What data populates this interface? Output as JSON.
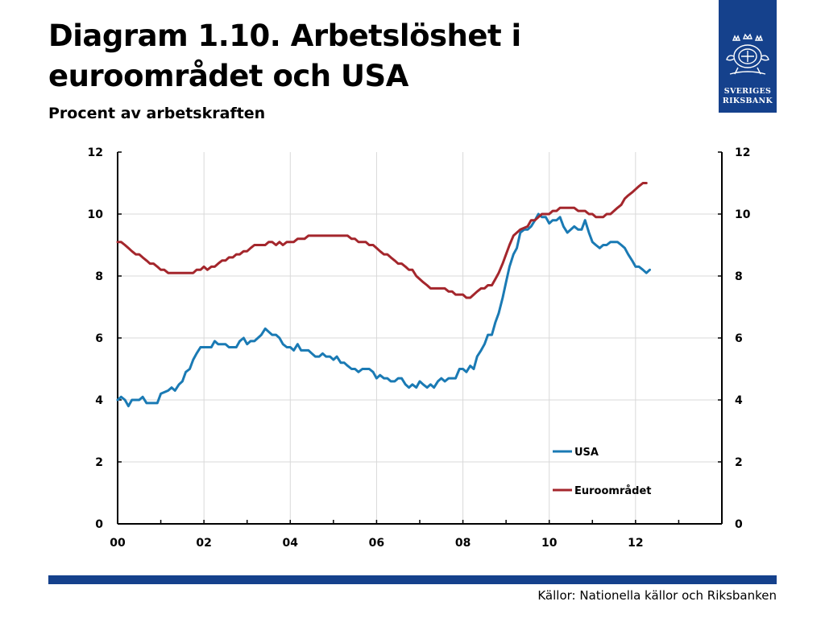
{
  "header": {
    "title": "Diagram 1.10. Arbetslöshet i euroområdet och USA",
    "subtitle": "Procent av arbetskraften"
  },
  "logo": {
    "line1": "SVERIGES",
    "line2": "RIKSBANK",
    "background": "#15418c"
  },
  "source": "Källor: Nationella källor och Riksbanken",
  "colors": {
    "usa": "#1a7ab4",
    "euro": "#a4262c",
    "accent": "#15418c"
  },
  "chart_data": {
    "type": "line",
    "x_unit": "year (decimal)",
    "xlim": [
      2000,
      2014
    ],
    "ylim": [
      0,
      12
    ],
    "x_ticks": [
      {
        "value": 2000,
        "label": "00"
      },
      {
        "value": 2002,
        "label": "02"
      },
      {
        "value": 2004,
        "label": "04"
      },
      {
        "value": 2006,
        "label": "06"
      },
      {
        "value": 2008,
        "label": "08"
      },
      {
        "value": 2010,
        "label": "10"
      },
      {
        "value": 2012,
        "label": "12"
      }
    ],
    "y_ticks": [
      0,
      2,
      4,
      6,
      8,
      10,
      12
    ],
    "y_tick_labels": [
      "0",
      "2",
      "4",
      "6",
      "8",
      "10",
      "12"
    ],
    "grid": true,
    "legend": {
      "position": "bottom-right"
    },
    "series": [
      {
        "name": "USA",
        "color": "#1a7ab4",
        "points": [
          [
            2000.0,
            4.0
          ],
          [
            2000.08,
            4.1
          ],
          [
            2000.17,
            4.0
          ],
          [
            2000.25,
            3.8
          ],
          [
            2000.33,
            4.0
          ],
          [
            2000.5,
            4.0
          ],
          [
            2000.58,
            4.1
          ],
          [
            2000.67,
            3.9
          ],
          [
            2000.83,
            3.9
          ],
          [
            2000.92,
            3.9
          ],
          [
            2001.0,
            4.2
          ],
          [
            2001.17,
            4.3
          ],
          [
            2001.25,
            4.4
          ],
          [
            2001.33,
            4.3
          ],
          [
            2001.42,
            4.5
          ],
          [
            2001.5,
            4.6
          ],
          [
            2001.58,
            4.9
          ],
          [
            2001.67,
            5.0
          ],
          [
            2001.75,
            5.3
          ],
          [
            2001.83,
            5.5
          ],
          [
            2001.92,
            5.7
          ],
          [
            2002.0,
            5.7
          ],
          [
            2002.17,
            5.7
          ],
          [
            2002.25,
            5.9
          ],
          [
            2002.33,
            5.8
          ],
          [
            2002.5,
            5.8
          ],
          [
            2002.58,
            5.7
          ],
          [
            2002.75,
            5.7
          ],
          [
            2002.83,
            5.9
          ],
          [
            2002.92,
            6.0
          ],
          [
            2003.0,
            5.8
          ],
          [
            2003.08,
            5.9
          ],
          [
            2003.17,
            5.9
          ],
          [
            2003.25,
            6.0
          ],
          [
            2003.33,
            6.1
          ],
          [
            2003.42,
            6.3
          ],
          [
            2003.5,
            6.2
          ],
          [
            2003.58,
            6.1
          ],
          [
            2003.67,
            6.1
          ],
          [
            2003.75,
            6.0
          ],
          [
            2003.83,
            5.8
          ],
          [
            2003.92,
            5.7
          ],
          [
            2004.0,
            5.7
          ],
          [
            2004.08,
            5.6
          ],
          [
            2004.17,
            5.8
          ],
          [
            2004.25,
            5.6
          ],
          [
            2004.42,
            5.6
          ],
          [
            2004.5,
            5.5
          ],
          [
            2004.58,
            5.4
          ],
          [
            2004.67,
            5.4
          ],
          [
            2004.75,
            5.5
          ],
          [
            2004.83,
            5.4
          ],
          [
            2004.92,
            5.4
          ],
          [
            2005.0,
            5.3
          ],
          [
            2005.08,
            5.4
          ],
          [
            2005.17,
            5.2
          ],
          [
            2005.25,
            5.2
          ],
          [
            2005.33,
            5.1
          ],
          [
            2005.42,
            5.0
          ],
          [
            2005.5,
            5.0
          ],
          [
            2005.58,
            4.9
          ],
          [
            2005.67,
            5.0
          ],
          [
            2005.83,
            5.0
          ],
          [
            2005.92,
            4.9
          ],
          [
            2006.0,
            4.7
          ],
          [
            2006.08,
            4.8
          ],
          [
            2006.17,
            4.7
          ],
          [
            2006.25,
            4.7
          ],
          [
            2006.33,
            4.6
          ],
          [
            2006.42,
            4.6
          ],
          [
            2006.5,
            4.7
          ],
          [
            2006.58,
            4.7
          ],
          [
            2006.67,
            4.5
          ],
          [
            2006.75,
            4.4
          ],
          [
            2006.83,
            4.5
          ],
          [
            2006.92,
            4.4
          ],
          [
            2007.0,
            4.6
          ],
          [
            2007.08,
            4.5
          ],
          [
            2007.17,
            4.4
          ],
          [
            2007.25,
            4.5
          ],
          [
            2007.33,
            4.4
          ],
          [
            2007.42,
            4.6
          ],
          [
            2007.5,
            4.7
          ],
          [
            2007.58,
            4.6
          ],
          [
            2007.67,
            4.7
          ],
          [
            2007.83,
            4.7
          ],
          [
            2007.92,
            5.0
          ],
          [
            2008.0,
            5.0
          ],
          [
            2008.08,
            4.9
          ],
          [
            2008.17,
            5.1
          ],
          [
            2008.25,
            5.0
          ],
          [
            2008.33,
            5.4
          ],
          [
            2008.42,
            5.6
          ],
          [
            2008.5,
            5.8
          ],
          [
            2008.58,
            6.1
          ],
          [
            2008.67,
            6.1
          ],
          [
            2008.75,
            6.5
          ],
          [
            2008.83,
            6.8
          ],
          [
            2008.92,
            7.3
          ],
          [
            2009.0,
            7.8
          ],
          [
            2009.08,
            8.3
          ],
          [
            2009.17,
            8.7
          ],
          [
            2009.25,
            8.9
          ],
          [
            2009.33,
            9.4
          ],
          [
            2009.42,
            9.5
          ],
          [
            2009.5,
            9.5
          ],
          [
            2009.58,
            9.6
          ],
          [
            2009.67,
            9.8
          ],
          [
            2009.75,
            10.0
          ],
          [
            2009.83,
            9.9
          ],
          [
            2009.92,
            9.9
          ],
          [
            2010.0,
            9.7
          ],
          [
            2010.08,
            9.8
          ],
          [
            2010.17,
            9.8
          ],
          [
            2010.25,
            9.9
          ],
          [
            2010.33,
            9.6
          ],
          [
            2010.42,
            9.4
          ],
          [
            2010.5,
            9.5
          ],
          [
            2010.58,
            9.6
          ],
          [
            2010.67,
            9.5
          ],
          [
            2010.75,
            9.5
          ],
          [
            2010.83,
            9.8
          ],
          [
            2010.92,
            9.4
          ],
          [
            2011.0,
            9.1
          ],
          [
            2011.08,
            9.0
          ],
          [
            2011.17,
            8.9
          ],
          [
            2011.25,
            9.0
          ],
          [
            2011.33,
            9.0
          ],
          [
            2011.42,
            9.1
          ],
          [
            2011.58,
            9.1
          ],
          [
            2011.67,
            9.0
          ],
          [
            2011.75,
            8.9
          ],
          [
            2011.83,
            8.7
          ],
          [
            2011.92,
            8.5
          ],
          [
            2012.0,
            8.3
          ],
          [
            2012.08,
            8.3
          ],
          [
            2012.17,
            8.2
          ],
          [
            2012.25,
            8.1
          ],
          [
            2012.33,
            8.2
          ]
        ]
      },
      {
        "name": "Euroområdet",
        "color": "#a4262c",
        "points": [
          [
            2000.0,
            9.1
          ],
          [
            2000.08,
            9.1
          ],
          [
            2000.17,
            9.0
          ],
          [
            2000.25,
            8.9
          ],
          [
            2000.33,
            8.8
          ],
          [
            2000.42,
            8.7
          ],
          [
            2000.5,
            8.7
          ],
          [
            2000.58,
            8.6
          ],
          [
            2000.67,
            8.5
          ],
          [
            2000.75,
            8.4
          ],
          [
            2000.83,
            8.4
          ],
          [
            2000.92,
            8.3
          ],
          [
            2001.0,
            8.2
          ],
          [
            2001.08,
            8.2
          ],
          [
            2001.17,
            8.1
          ],
          [
            2001.25,
            8.1
          ],
          [
            2001.5,
            8.1
          ],
          [
            2001.75,
            8.1
          ],
          [
            2001.83,
            8.2
          ],
          [
            2001.92,
            8.2
          ],
          [
            2002.0,
            8.3
          ],
          [
            2002.08,
            8.2
          ],
          [
            2002.17,
            8.3
          ],
          [
            2002.25,
            8.3
          ],
          [
            2002.33,
            8.4
          ],
          [
            2002.42,
            8.5
          ],
          [
            2002.5,
            8.5
          ],
          [
            2002.58,
            8.6
          ],
          [
            2002.67,
            8.6
          ],
          [
            2002.75,
            8.7
          ],
          [
            2002.83,
            8.7
          ],
          [
            2002.92,
            8.8
          ],
          [
            2003.0,
            8.8
          ],
          [
            2003.08,
            8.9
          ],
          [
            2003.17,
            9.0
          ],
          [
            2003.42,
            9.0
          ],
          [
            2003.5,
            9.1
          ],
          [
            2003.58,
            9.1
          ],
          [
            2003.67,
            9.0
          ],
          [
            2003.75,
            9.1
          ],
          [
            2003.83,
            9.0
          ],
          [
            2003.92,
            9.1
          ],
          [
            2004.0,
            9.1
          ],
          [
            2004.08,
            9.1
          ],
          [
            2004.17,
            9.2
          ],
          [
            2004.33,
            9.2
          ],
          [
            2004.42,
            9.3
          ],
          [
            2005.33,
            9.3
          ],
          [
            2005.42,
            9.2
          ],
          [
            2005.5,
            9.2
          ],
          [
            2005.58,
            9.1
          ],
          [
            2005.75,
            9.1
          ],
          [
            2005.83,
            9.0
          ],
          [
            2005.92,
            9.0
          ],
          [
            2006.0,
            8.9
          ],
          [
            2006.08,
            8.8
          ],
          [
            2006.17,
            8.7
          ],
          [
            2006.25,
            8.7
          ],
          [
            2006.33,
            8.6
          ],
          [
            2006.42,
            8.5
          ],
          [
            2006.5,
            8.4
          ],
          [
            2006.58,
            8.4
          ],
          [
            2006.67,
            8.3
          ],
          [
            2006.75,
            8.2
          ],
          [
            2006.83,
            8.2
          ],
          [
            2006.92,
            8.0
          ],
          [
            2007.0,
            7.9
          ],
          [
            2007.08,
            7.8
          ],
          [
            2007.17,
            7.7
          ],
          [
            2007.25,
            7.6
          ],
          [
            2007.58,
            7.6
          ],
          [
            2007.67,
            7.5
          ],
          [
            2007.75,
            7.5
          ],
          [
            2007.83,
            7.4
          ],
          [
            2008.0,
            7.4
          ],
          [
            2008.08,
            7.3
          ],
          [
            2008.17,
            7.3
          ],
          [
            2008.25,
            7.4
          ],
          [
            2008.33,
            7.5
          ],
          [
            2008.42,
            7.6
          ],
          [
            2008.5,
            7.6
          ],
          [
            2008.58,
            7.7
          ],
          [
            2008.67,
            7.7
          ],
          [
            2008.75,
            7.9
          ],
          [
            2008.83,
            8.1
          ],
          [
            2008.92,
            8.4
          ],
          [
            2009.0,
            8.7
          ],
          [
            2009.08,
            9.0
          ],
          [
            2009.17,
            9.3
          ],
          [
            2009.33,
            9.5
          ],
          [
            2009.5,
            9.6
          ],
          [
            2009.58,
            9.8
          ],
          [
            2009.67,
            9.8
          ],
          [
            2009.75,
            9.9
          ],
          [
            2009.83,
            10.0
          ],
          [
            2010.0,
            10.0
          ],
          [
            2010.08,
            10.1
          ],
          [
            2010.17,
            10.1
          ],
          [
            2010.25,
            10.2
          ],
          [
            2010.58,
            10.2
          ],
          [
            2010.67,
            10.1
          ],
          [
            2010.83,
            10.1
          ],
          [
            2010.92,
            10.0
          ],
          [
            2011.0,
            10.0
          ],
          [
            2011.08,
            9.9
          ],
          [
            2011.25,
            9.9
          ],
          [
            2011.33,
            10.0
          ],
          [
            2011.42,
            10.0
          ],
          [
            2011.5,
            10.1
          ],
          [
            2011.58,
            10.2
          ],
          [
            2011.67,
            10.3
          ],
          [
            2011.75,
            10.5
          ],
          [
            2011.83,
            10.6
          ],
          [
            2011.92,
            10.7
          ],
          [
            2012.0,
            10.8
          ],
          [
            2012.08,
            10.9
          ],
          [
            2012.17,
            11.0
          ],
          [
            2012.25,
            11.0
          ]
        ]
      }
    ]
  }
}
